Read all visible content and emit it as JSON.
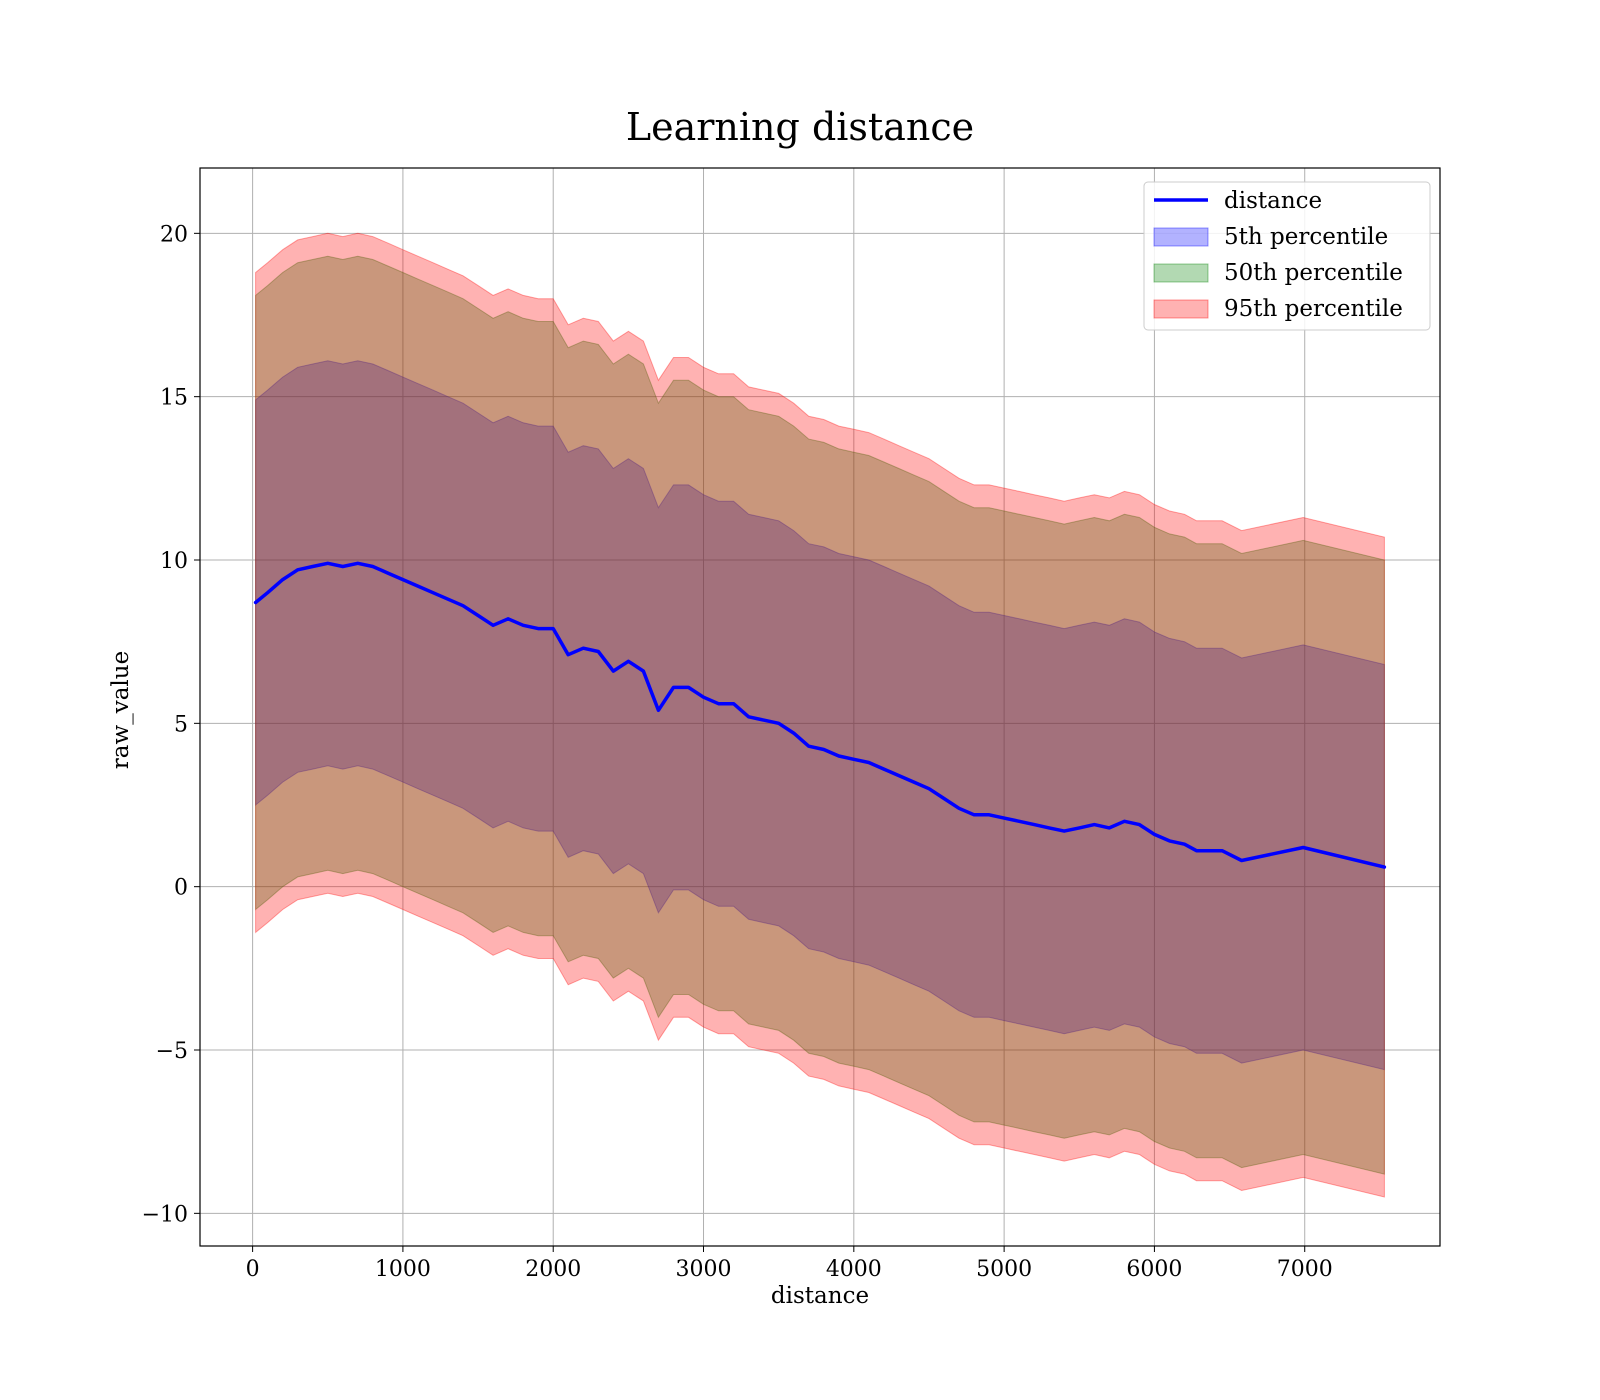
{
  "chart_data": {
    "type": "area",
    "title": "Learning distance",
    "xlabel": "distance",
    "ylabel": "raw_value",
    "xlim": [
      -350,
      7900
    ],
    "ylim": [
      -11,
      22
    ],
    "xticks": [
      0,
      1000,
      2000,
      3000,
      4000,
      5000,
      6000,
      7000
    ],
    "yticks": [
      -10,
      -5,
      0,
      5,
      10,
      15,
      20
    ],
    "ytick_labels": [
      "−10",
      "−5",
      "0",
      "5",
      "10",
      "15",
      "20"
    ],
    "grid": true,
    "legend_position": "top-right",
    "colors": {
      "line": "#0000ff",
      "band_5th": "#0000ff",
      "band_50th": "#008000",
      "band_95th": "#ff0000"
    },
    "line": {
      "name": "distance",
      "x": [
        20,
        100,
        200,
        300,
        400,
        500,
        600,
        700,
        800,
        900,
        1000,
        1100,
        1200,
        1300,
        1400,
        1500,
        1600,
        1700,
        1800,
        1900,
        2000,
        2100,
        2200,
        2300,
        2400,
        2500,
        2600,
        2650,
        2700,
        2800,
        2900,
        3000,
        3100,
        3200,
        3300,
        3400,
        3500,
        3600,
        3700,
        3800,
        3900,
        4000,
        4100,
        4200,
        4300,
        4400,
        4500,
        4600,
        4700,
        4800,
        4900,
        5000,
        5100,
        5200,
        5300,
        5400,
        5500,
        5600,
        5700,
        5800,
        5900,
        6000,
        6100,
        6200,
        6280,
        6450,
        6580,
        6990,
        7530
      ],
      "y": [
        8.7,
        9.0,
        9.4,
        9.7,
        9.8,
        9.9,
        9.8,
        9.9,
        9.8,
        9.6,
        9.4,
        9.2,
        9.0,
        8.8,
        8.6,
        8.3,
        8.0,
        8.2,
        8.0,
        7.9,
        7.9,
        7.1,
        7.3,
        7.2,
        6.6,
        6.9,
        6.6,
        6.0,
        5.4,
        6.1,
        6.1,
        5.8,
        5.6,
        5.6,
        5.2,
        5.1,
        5.0,
        4.7,
        4.3,
        4.2,
        4.0,
        3.9,
        3.8,
        3.6,
        3.4,
        3.2,
        3.0,
        2.7,
        2.4,
        2.2,
        2.2,
        2.1,
        2.0,
        1.9,
        1.8,
        1.7,
        1.8,
        1.9,
        1.8,
        2.0,
        1.9,
        1.6,
        1.4,
        1.3,
        1.1,
        1.1,
        0.8,
        1.2,
        0.6
      ]
    },
    "bands": [
      {
        "name": "5th percentile",
        "offset": 6.2
      },
      {
        "name": "50th percentile",
        "offset": 9.4
      },
      {
        "name": "95th percentile",
        "offset": 10.1
      }
    ]
  }
}
